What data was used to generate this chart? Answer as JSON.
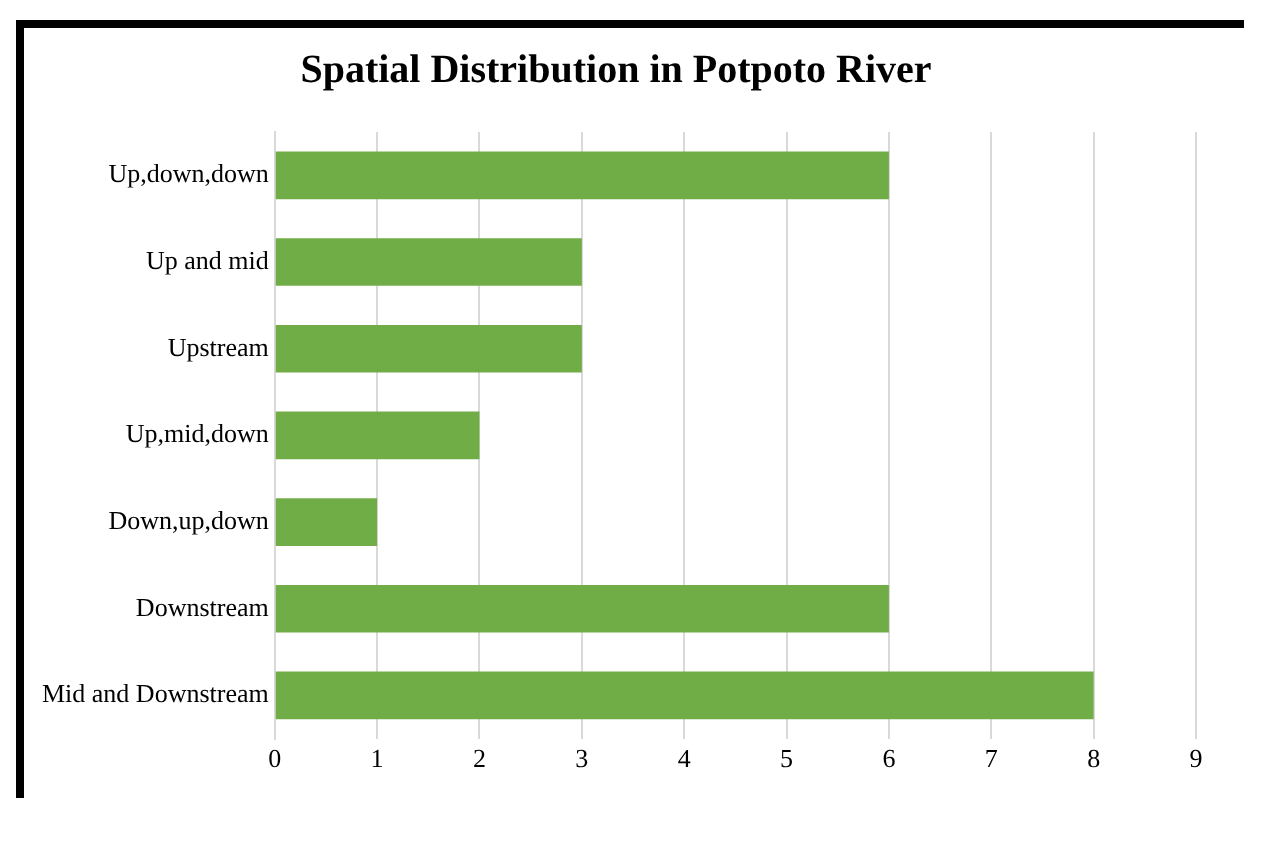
{
  "chart_data": {
    "type": "bar",
    "orientation": "horizontal",
    "title": "Spatial Distribution in Potpoto River",
    "categories": [
      "Up,down,down",
      "Up and mid",
      "Upstream",
      "Up,mid,down",
      "Down,up,down",
      "Downstream",
      "Mid and Downstream"
    ],
    "values": [
      6,
      3,
      3,
      2,
      1,
      6,
      8
    ],
    "color": "#70ad47",
    "xlim": [
      0,
      9
    ],
    "xticks": [
      0,
      1,
      2,
      3,
      4,
      5,
      6,
      7,
      8,
      9
    ],
    "grid": "x",
    "legend": false
  }
}
